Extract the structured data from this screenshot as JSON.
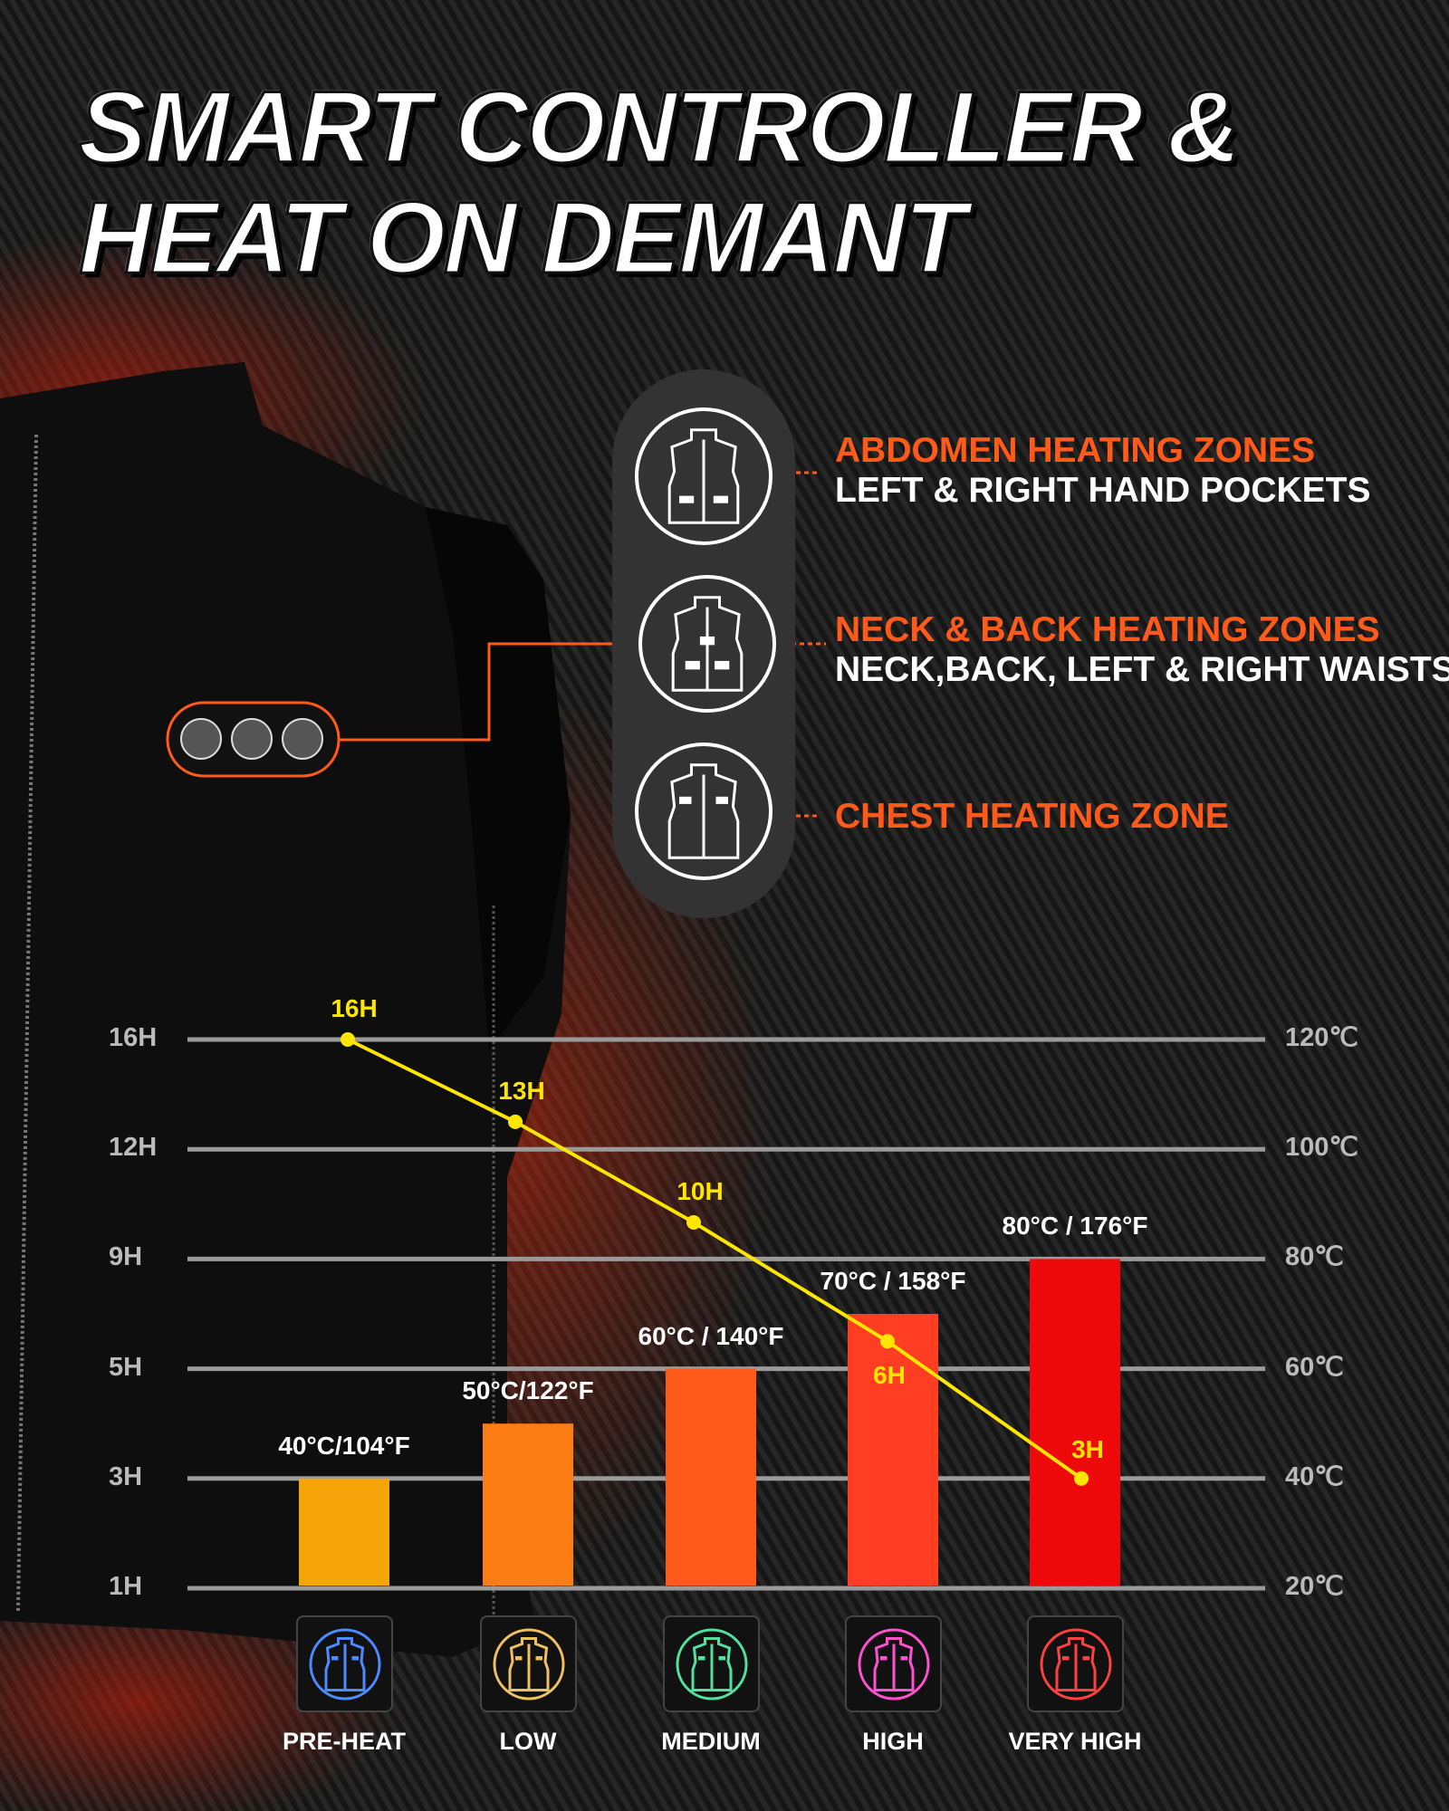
{
  "title": {
    "line1": "SMART CONTROLLER &",
    "line2": "HEAT ON DEMANT"
  },
  "zones": [
    {
      "title": "ABDOMEN HEATING ZONES",
      "subtitle": "LEFT & RIGHT HAND POCKETS",
      "icon": "vest-pockets-icon"
    },
    {
      "title": "NECK & BACK HEATING ZONES",
      "subtitle": "NECK,BACK, LEFT & RIGHT WAISTS",
      "icon": "vest-back-icon"
    },
    {
      "title": "CHEST HEATING ZONE",
      "subtitle": "",
      "icon": "vest-chest-icon"
    }
  ],
  "colors": {
    "accent": "#ff5a1a",
    "line": "#ffe600",
    "bars": [
      "#f5a40a",
      "#fb7d14",
      "#ff5a1a",
      "#ff3d22",
      "#ee0a0a"
    ],
    "icon_rings": [
      "#4a8cff",
      "#f0c060",
      "#50e0a0",
      "#ff50d0",
      "#ff4040"
    ]
  },
  "chart_data": {
    "type": "bar+line",
    "categories": [
      "PRE-HEAT",
      "LOW",
      "MEDIUM",
      "HIGH",
      "VERY HIGH"
    ],
    "left_axis": {
      "ticks": [
        "16H",
        "12H",
        "9H",
        "5H",
        "3H",
        "1H"
      ],
      "values": [
        16,
        12,
        9,
        5,
        3,
        1
      ]
    },
    "right_axis": {
      "ticks": [
        "120℃",
        "100℃",
        "80℃",
        "60℃",
        "40℃",
        "20℃"
      ],
      "ylim": [
        20,
        120
      ]
    },
    "temperature_c": [
      40,
      50,
      60,
      70,
      80
    ],
    "temperature_labels": [
      "40°C/104°F",
      "50°C/122°F",
      "60°C / 140°F",
      "70°C / 158°F",
      "80°C / 176°F"
    ],
    "hours": [
      16,
      13,
      10,
      6,
      3
    ],
    "hour_labels": [
      "16H",
      "13H",
      "10H",
      "6H",
      "3H"
    ],
    "grid": true
  }
}
